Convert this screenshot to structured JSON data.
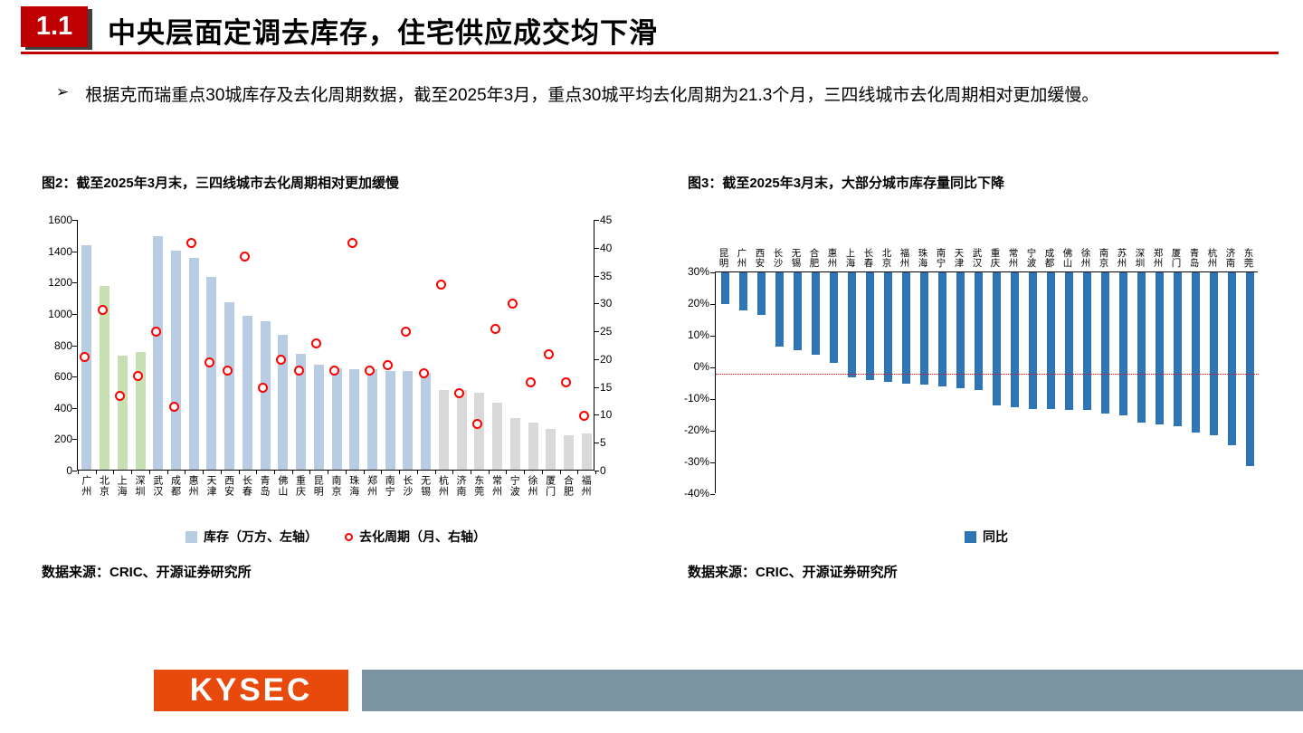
{
  "colors": {
    "accent_red": "#c00000",
    "bar_blue": "#b8cce4",
    "bar_green": "#c6e0b4",
    "bar_gray": "#d9d9d9",
    "marker_red": "#ff0000",
    "yoy_bar_blue": "#2e75b6",
    "logo_orange": "#e8490d",
    "footer_slate": "#7b94a2"
  },
  "header": {
    "section_number": "1.1",
    "title": "中央层面定调去库存，住宅供应成交均下滑"
  },
  "bullet": {
    "marker": "➢",
    "text": "根据克而瑞重点30城库存及去化周期数据，截至2025年3月，重点30城平均去化周期为21.3个月，三四线城市去化周期相对更加缓慢。"
  },
  "figure2": {
    "title": "图2：截至2025年3月末，三四线城市去化周期相对更加缓慢",
    "legend_bar": "库存（万方、左轴）",
    "legend_marker": "去化周期（月、右轴）",
    "source": "数据来源：CRIC、开源证券研究所"
  },
  "figure3": {
    "title": "图3：截至2025年3月末，大部分城市库存量同比下降",
    "legend": "同比",
    "source": "数据来源：CRIC、开源证券研究所"
  },
  "footer": {
    "logo_text": "KYSEC"
  },
  "chart_data": [
    {
      "type": "bar",
      "subtype": "bar+scatter dual-axis",
      "title": "图2：截至2025年3月末，三四线城市去化周期相对更加缓慢",
      "categories": [
        "广州",
        "北京",
        "上海",
        "深圳",
        "武汉",
        "成都",
        "惠州",
        "天津",
        "西安",
        "长春",
        "青岛",
        "佛山",
        "重庆",
        "昆明",
        "南京",
        "珠海",
        "郑州",
        "南宁",
        "长沙",
        "无锡",
        "杭州",
        "济南",
        "东莞",
        "常州",
        "宁波",
        "徐州",
        "厦门",
        "合肥",
        "福州"
      ],
      "series": [
        {
          "name": "库存（万方、左轴）",
          "type": "bar",
          "axis": "left",
          "values": [
            1430,
            1170,
            730,
            750,
            1490,
            1400,
            1350,
            1230,
            1070,
            980,
            950,
            860,
            740,
            670,
            650,
            640,
            640,
            630,
            630,
            620,
            510,
            510,
            490,
            430,
            330,
            300,
            260,
            220,
            230
          ]
        },
        {
          "name": "去化周期（月、右轴）",
          "type": "scatter",
          "axis": "right",
          "values": [
            20,
            28.5,
            13,
            16.5,
            24.5,
            11,
            40.5,
            19,
            17.5,
            38,
            14.5,
            19.5,
            17.5,
            22.5,
            17.5,
            40.5,
            17.5,
            18.5,
            24.5,
            17,
            33,
            13.5,
            8,
            25,
            29.5,
            15.5,
            20.5,
            15.5,
            9.5
          ]
        }
      ],
      "left_axis": {
        "min": 0,
        "max": 1600,
        "step": 200
      },
      "right_axis": {
        "min": 0,
        "max": 45,
        "step": 5
      },
      "bar_colors": {
        "green_indices": [
          1,
          2,
          3
        ],
        "gray_from_index": 20
      },
      "legend_position": "bottom",
      "grid": false
    },
    {
      "type": "bar",
      "subtype": "category axis crosses at max, bars hang downward",
      "title": "图3：截至2025年3月末，大部分城市库存量同比下降",
      "categories": [
        "昆明",
        "广州",
        "西安",
        "长沙",
        "无锡",
        "合肥",
        "惠州",
        "上海",
        "长春",
        "北京",
        "福州",
        "珠海",
        "南宁",
        "天津",
        "武汉",
        "重庆",
        "常州",
        "宁波",
        "成都",
        "佛山",
        "徐州",
        "南京",
        "苏州",
        "深圳",
        "郑州",
        "厦门",
        "青岛",
        "杭州",
        "济南",
        "东莞"
      ],
      "series": [
        {
          "name": "同比",
          "values": [
            20,
            18,
            16.5,
            6.5,
            5.5,
            4,
            1.5,
            -3,
            -4,
            -4.5,
            -5,
            -5.5,
            -6,
            -6.5,
            -7,
            -12,
            -12.5,
            -13,
            -13,
            -13.5,
            -13.5,
            -14.5,
            -15,
            -17.5,
            -18,
            -18.5,
            -20.5,
            -21.5,
            -24.5,
            -31
          ]
        }
      ],
      "ylim": [
        -40,
        30
      ],
      "ytick_step": 10,
      "ytick_format": "percent",
      "reference_line": -2,
      "legend_position": "bottom",
      "grid": false
    }
  ]
}
